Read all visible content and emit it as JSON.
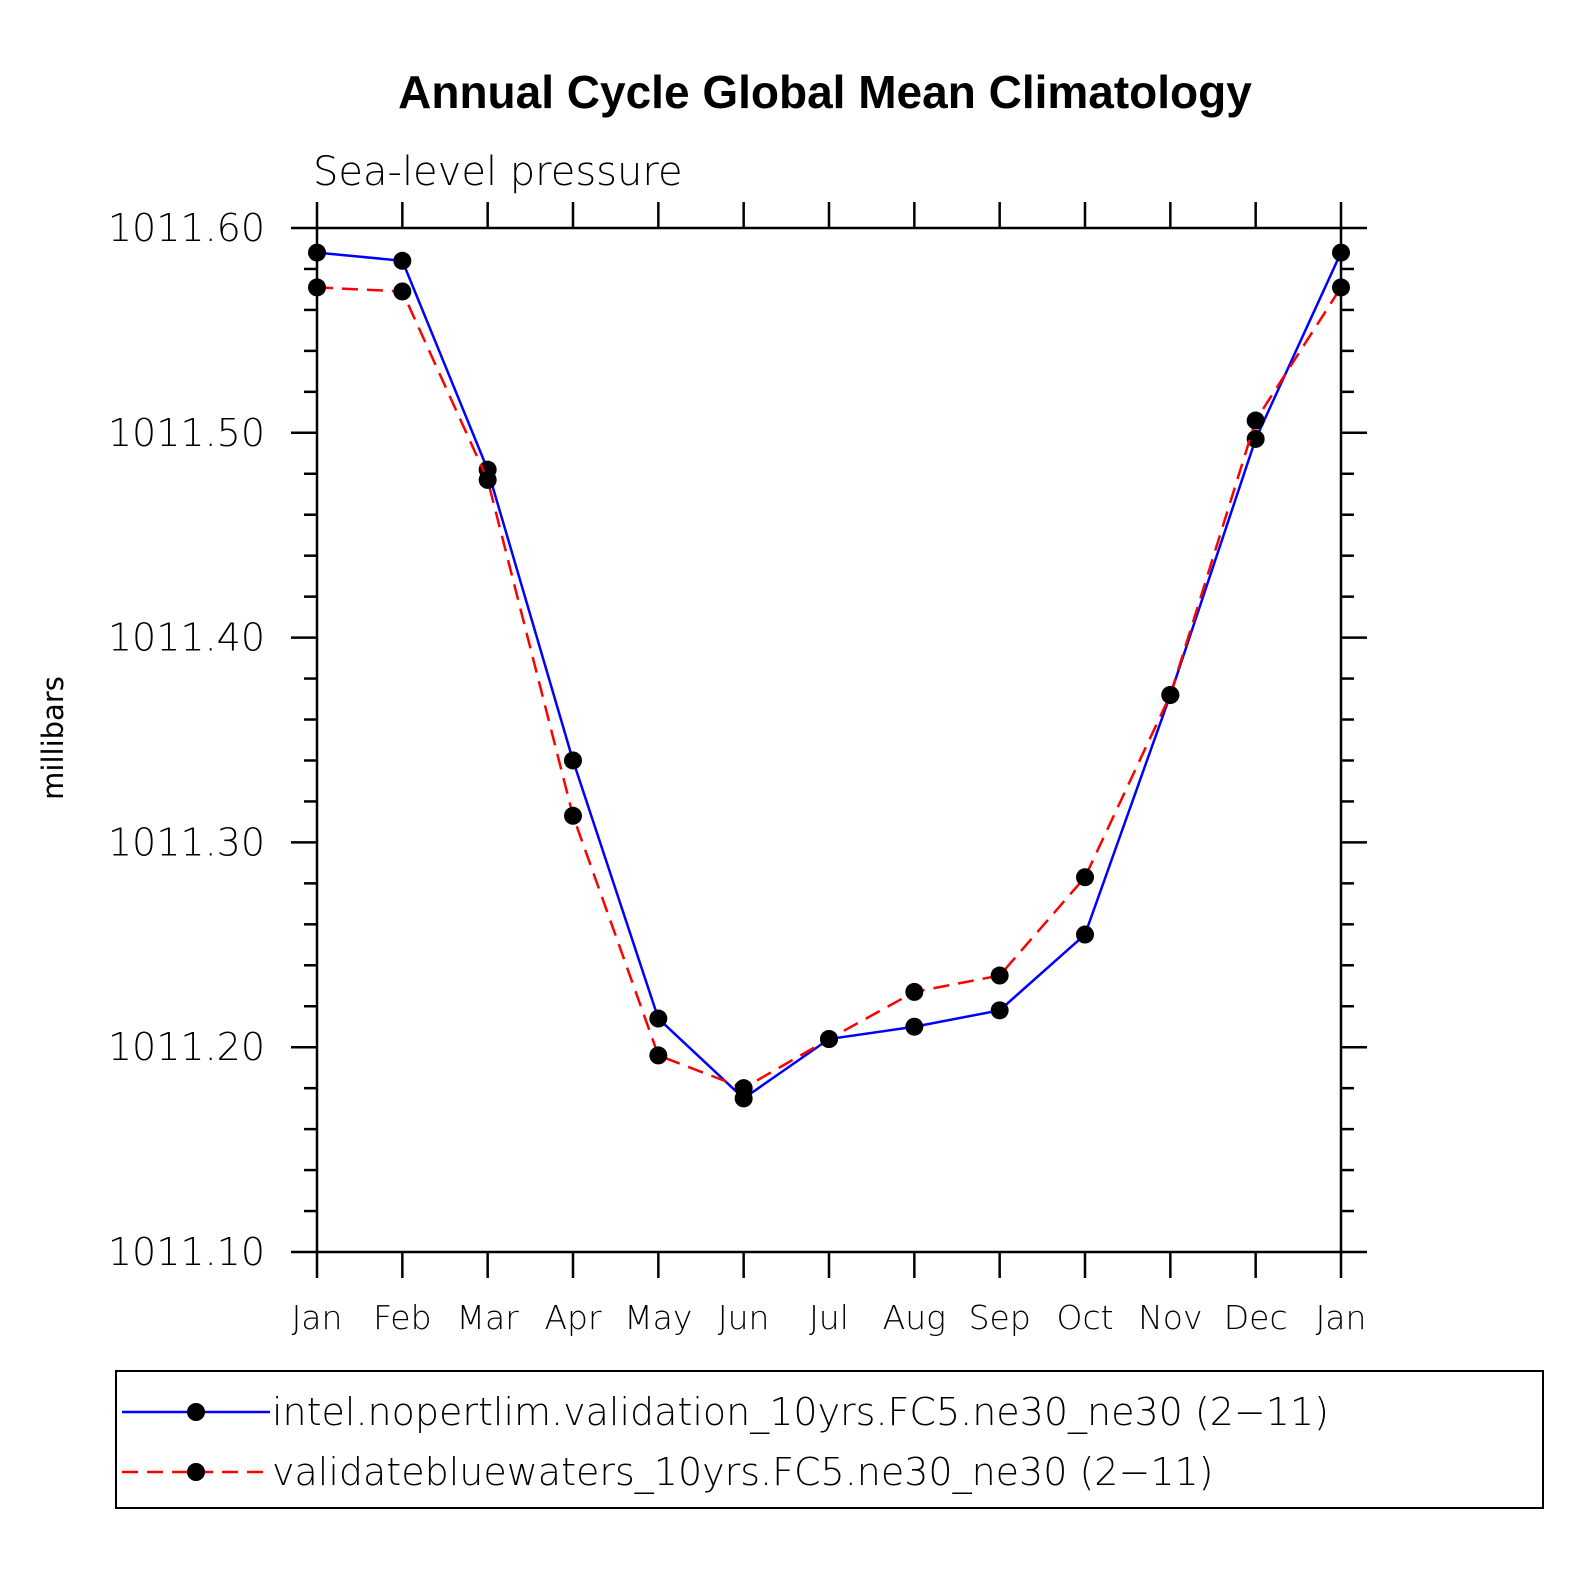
{
  "chart_data": {
    "type": "line",
    "title": "Annual Cycle Global Mean Climatology",
    "subtitle": "Sea-level pressure",
    "xlabel": "",
    "ylabel": "millibars",
    "categories": [
      "Jan",
      "Feb",
      "Mar",
      "Apr",
      "May",
      "Jun",
      "Jul",
      "Aug",
      "Sep",
      "Oct",
      "Nov",
      "Dec",
      "Jan"
    ],
    "ylim": [
      1011.1,
      1011.6
    ],
    "yticks": [
      "1011.10",
      "1011.20",
      "1011.30",
      "1011.40",
      "1011.50",
      "1011.60"
    ],
    "grid": false,
    "legend_position": "bottom",
    "series": [
      {
        "name": "intel.nopertlim.validation_10yrs.FC5.ne30_ne30 (2−11)",
        "color": "#0000ff",
        "style": "solid",
        "values": [
          1011.588,
          1011.584,
          1011.482,
          1011.34,
          1011.214,
          1011.175,
          1011.204,
          1011.21,
          1011.218,
          1011.255,
          1011.372,
          1011.497,
          1011.588
        ]
      },
      {
        "name": "validatebluewaters_10yrs.FC5.ne30_ne30 (2−11)",
        "color": "#ff0000",
        "style": "dashed",
        "values": [
          1011.571,
          1011.569,
          1011.477,
          1011.313,
          1011.196,
          1011.18,
          1011.204,
          1011.227,
          1011.235,
          1011.283,
          1011.372,
          1011.506,
          1011.571
        ]
      }
    ]
  }
}
